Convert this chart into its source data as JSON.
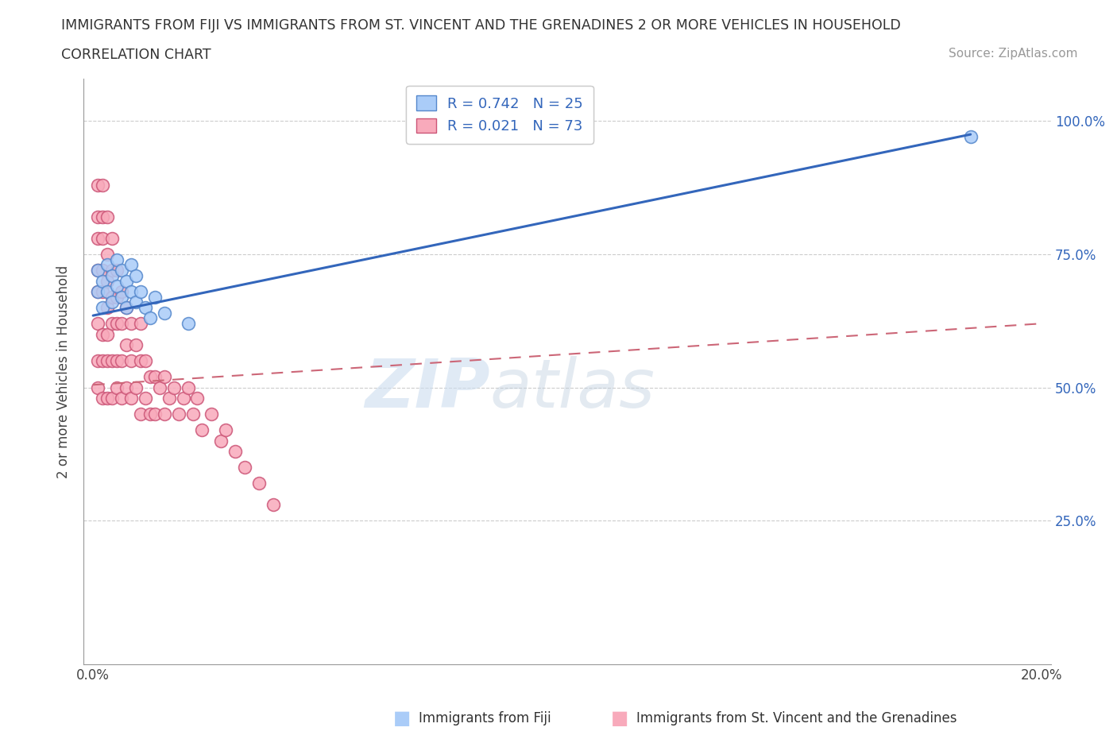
{
  "title_line1": "IMMIGRANTS FROM FIJI VS IMMIGRANTS FROM ST. VINCENT AND THE GRENADINES 2 OR MORE VEHICLES IN HOUSEHOLD",
  "title_line2": "CORRELATION CHART",
  "source_text": "Source: ZipAtlas.com",
  "ylabel": "2 or more Vehicles in Household",
  "fiji_color": "#aaccf8",
  "fiji_edge": "#5588cc",
  "svg_color": "#f8aabb",
  "svg_edge": "#cc5577",
  "trend_fiji_color": "#3366bb",
  "trend_svg_color": "#cc6677",
  "legend_R_fiji": "R = 0.742",
  "legend_N_fiji": "N = 25",
  "legend_R_svg": "R = 0.021",
  "legend_N_svg": "N = 73",
  "watermark_zip": "ZIP",
  "watermark_atlas": "atlas",
  "xlim": [
    -0.002,
    0.202
  ],
  "ylim": [
    -0.02,
    1.08
  ],
  "fiji_scatter_x": [
    0.001,
    0.001,
    0.002,
    0.002,
    0.003,
    0.003,
    0.004,
    0.004,
    0.005,
    0.005,
    0.006,
    0.006,
    0.007,
    0.007,
    0.008,
    0.008,
    0.009,
    0.009,
    0.01,
    0.011,
    0.012,
    0.013,
    0.015,
    0.02,
    0.185
  ],
  "fiji_scatter_y": [
    0.68,
    0.72,
    0.65,
    0.7,
    0.68,
    0.73,
    0.66,
    0.71,
    0.69,
    0.74,
    0.67,
    0.72,
    0.65,
    0.7,
    0.68,
    0.73,
    0.66,
    0.71,
    0.68,
    0.65,
    0.63,
    0.67,
    0.64,
    0.62,
    0.97
  ],
  "fiji_trend_x": [
    0.0,
    0.185
  ],
  "fiji_trend_y": [
    0.635,
    0.975
  ],
  "svg_scatter_x": [
    0.001,
    0.001,
    0.001,
    0.001,
    0.001,
    0.001,
    0.001,
    0.001,
    0.002,
    0.002,
    0.002,
    0.002,
    0.002,
    0.002,
    0.002,
    0.002,
    0.003,
    0.003,
    0.003,
    0.003,
    0.003,
    0.003,
    0.003,
    0.004,
    0.004,
    0.004,
    0.004,
    0.004,
    0.004,
    0.005,
    0.005,
    0.005,
    0.005,
    0.005,
    0.006,
    0.006,
    0.006,
    0.006,
    0.007,
    0.007,
    0.007,
    0.008,
    0.008,
    0.008,
    0.009,
    0.009,
    0.01,
    0.01,
    0.01,
    0.011,
    0.011,
    0.012,
    0.012,
    0.013,
    0.013,
    0.014,
    0.015,
    0.015,
    0.016,
    0.017,
    0.018,
    0.019,
    0.02,
    0.021,
    0.022,
    0.023,
    0.025,
    0.027,
    0.028,
    0.03,
    0.032,
    0.035,
    0.038
  ],
  "svg_scatter_y": [
    0.88,
    0.82,
    0.78,
    0.72,
    0.68,
    0.62,
    0.55,
    0.5,
    0.88,
    0.82,
    0.78,
    0.72,
    0.68,
    0.6,
    0.55,
    0.48,
    0.82,
    0.75,
    0.7,
    0.65,
    0.6,
    0.55,
    0.48,
    0.78,
    0.72,
    0.67,
    0.62,
    0.55,
    0.48,
    0.72,
    0.67,
    0.62,
    0.55,
    0.5,
    0.68,
    0.62,
    0.55,
    0.48,
    0.65,
    0.58,
    0.5,
    0.62,
    0.55,
    0.48,
    0.58,
    0.5,
    0.62,
    0.55,
    0.45,
    0.55,
    0.48,
    0.52,
    0.45,
    0.52,
    0.45,
    0.5,
    0.52,
    0.45,
    0.48,
    0.5,
    0.45,
    0.48,
    0.5,
    0.45,
    0.48,
    0.42,
    0.45,
    0.4,
    0.42,
    0.38,
    0.35,
    0.32,
    0.28
  ],
  "svg_trend_x": [
    0.0,
    0.2
  ],
  "svg_trend_y": [
    0.505,
    0.62
  ]
}
